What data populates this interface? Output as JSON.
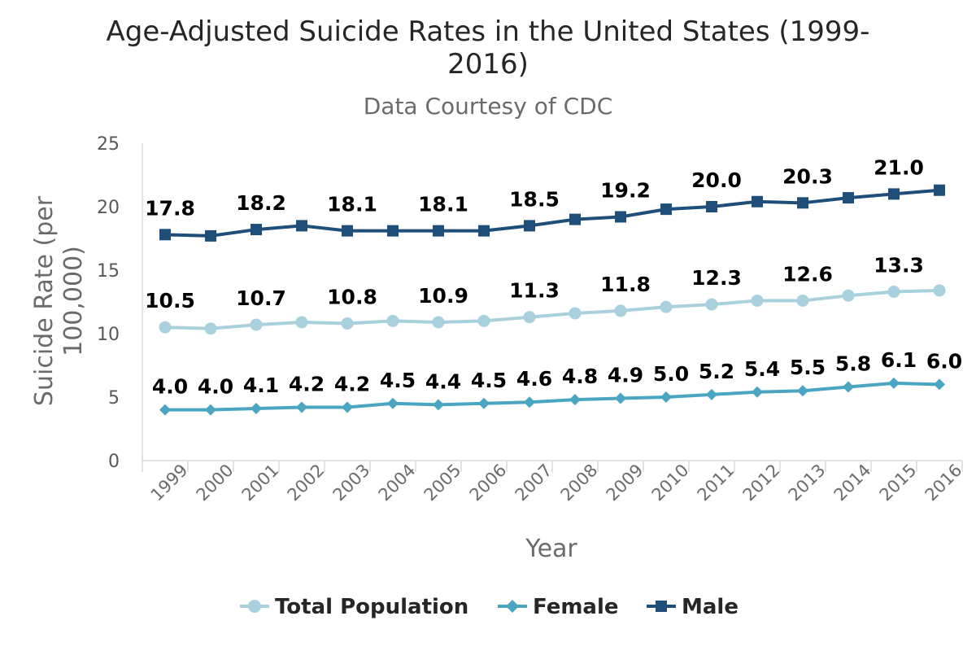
{
  "chart_data": {
    "type": "line",
    "title_line1": "Age-Adjusted Suicide Rates in the United States (1999-",
    "title_line2": "2016)",
    "subtitle": "Data Courtesy of CDC",
    "xlabel": "Year",
    "ylabel_line1": "Suicide Rate (per",
    "ylabel_line2": "100,000)",
    "ylim": [
      0,
      25
    ],
    "yticks": [
      "0",
      "5",
      "10",
      "15",
      "20",
      "25"
    ],
    "categories": [
      "1999",
      "2000",
      "2001",
      "2002",
      "2003",
      "2004",
      "2005",
      "2006",
      "2007",
      "2008",
      "2009",
      "2010",
      "2011",
      "2012",
      "2013",
      "2014",
      "2015",
      "2016"
    ],
    "grid": false,
    "legend_position": "bottom",
    "series": [
      {
        "name": "Total Population",
        "color": "#a9d0dd",
        "marker": "circle",
        "values": [
          10.5,
          10.4,
          10.7,
          10.9,
          10.8,
          11.0,
          10.9,
          11.0,
          11.3,
          11.6,
          11.8,
          12.1,
          12.3,
          12.6,
          12.6,
          13.0,
          13.3,
          13.4
        ],
        "labeled_indices": [
          0,
          2,
          4,
          6,
          8,
          10,
          12,
          14,
          16
        ],
        "labels": [
          "10.5",
          "10.7",
          "10.8",
          "10.9",
          "11.3",
          "11.8",
          "12.3",
          "12.6",
          "13.3"
        ]
      },
      {
        "name": "Female",
        "color": "#4aa6c0",
        "marker": "diamond",
        "values": [
          4.0,
          4.0,
          4.1,
          4.2,
          4.2,
          4.5,
          4.4,
          4.5,
          4.6,
          4.8,
          4.9,
          5.0,
          5.2,
          5.4,
          5.5,
          5.8,
          6.1,
          6.0
        ],
        "labeled_indices": [
          0,
          1,
          2,
          3,
          4,
          5,
          6,
          7,
          8,
          9,
          10,
          11,
          12,
          13,
          14,
          15,
          16,
          17
        ],
        "labels": [
          "4.0",
          "4.0",
          "4.1",
          "4.2",
          "4.2",
          "4.5",
          "4.4",
          "4.5",
          "4.6",
          "4.8",
          "4.9",
          "5.0",
          "5.2",
          "5.4",
          "5.5",
          "5.8",
          "6.1",
          "6.0"
        ]
      },
      {
        "name": "Male",
        "color": "#1f4e79",
        "marker": "square",
        "values": [
          17.8,
          17.7,
          18.2,
          18.5,
          18.1,
          18.1,
          18.1,
          18.1,
          18.5,
          19.0,
          19.2,
          19.8,
          20.0,
          20.4,
          20.3,
          20.7,
          21.0,
          21.3
        ],
        "labeled_indices": [
          0,
          2,
          4,
          6,
          8,
          10,
          12,
          14,
          16
        ],
        "labels": [
          "17.8",
          "18.2",
          "18.1",
          "18.1",
          "18.5",
          "19.2",
          "20.0",
          "20.3",
          "21.0"
        ]
      }
    ]
  }
}
